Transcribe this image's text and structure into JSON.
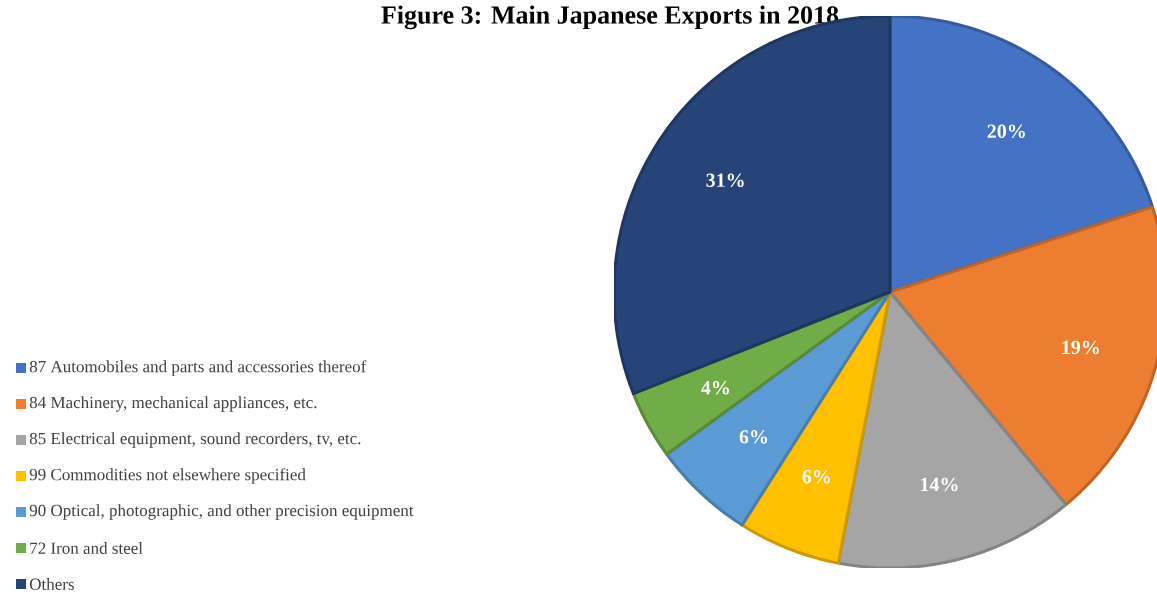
{
  "chart_data": {
    "type": "pie",
    "title": "Figure 3: Main Japanese Exports in 2018",
    "categories": [
      "87 Automobiles and parts and accessories thereof",
      "84 Machinery, mechanical appliances, etc.",
      "85 Electrical equipment, sound recorders, tv, etc.",
      "99 Commodities not elsewhere specified",
      "90 Optical, photographic, and other precision equipment",
      "72 Iron and steel",
      "Others"
    ],
    "values": [
      20,
      19,
      14,
      6,
      6,
      4,
      31
    ],
    "value_labels": [
      "20%",
      "19%",
      "14%",
      "6%",
      "6%",
      "4%",
      "31%"
    ],
    "colors": [
      "#4472c4",
      "#ed7d31",
      "#a5a5a5",
      "#ffc000",
      "#5b9bd5",
      "#70ad47",
      "#264478"
    ],
    "legend": "left"
  }
}
